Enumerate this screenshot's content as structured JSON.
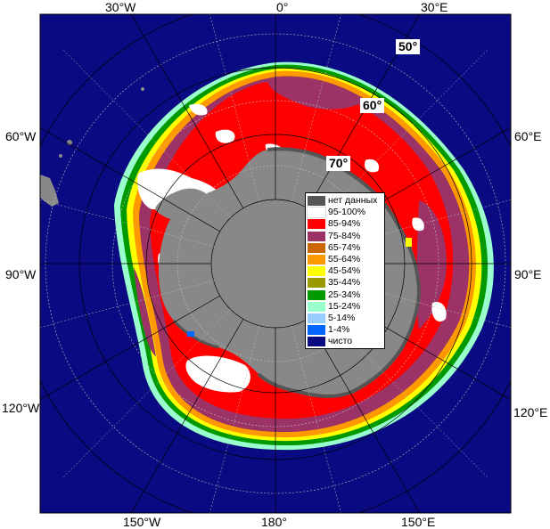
{
  "map": {
    "longitude_labels": {
      "w30": "30°W",
      "zero": "0°",
      "e30": "30°E",
      "w60": "60°W",
      "e60": "60°E",
      "w90": "90°W",
      "e90": "90°E",
      "w120": "120°W",
      "e120": "120°E",
      "w150": "150°W",
      "deg180": "180°",
      "e150": "150°E"
    },
    "latitude_labels": {
      "lat50": "50°",
      "lat60": "60°",
      "lat70": "70°"
    },
    "colors": {
      "open_water": "#0a0a82",
      "land": "#888888",
      "no_data": "#555555",
      "grid": "#c0c0c0"
    }
  },
  "legend": {
    "items": [
      {
        "label": "нет данных",
        "color": "#555555"
      },
      {
        "label": "95-100%",
        "color": "#ffffff"
      },
      {
        "label": "85-94%",
        "color": "#ff0000"
      },
      {
        "label": "75-84%",
        "color": "#9c3366"
      },
      {
        "label": "65-74%",
        "color": "#cc6600"
      },
      {
        "label": "55-64%",
        "color": "#ff9900"
      },
      {
        "label": "45-54%",
        "color": "#ffff00"
      },
      {
        "label": "35-44%",
        "color": "#999900"
      },
      {
        "label": "25-34%",
        "color": "#009900"
      },
      {
        "label": "15-24%",
        "color": "#99ffcc"
      },
      {
        "label": "5-14%",
        "color": "#99ccff"
      },
      {
        "label": "1-4%",
        "color": "#0066ff"
      },
      {
        "label": "чисто",
        "color": "#0a0a82"
      }
    ]
  }
}
